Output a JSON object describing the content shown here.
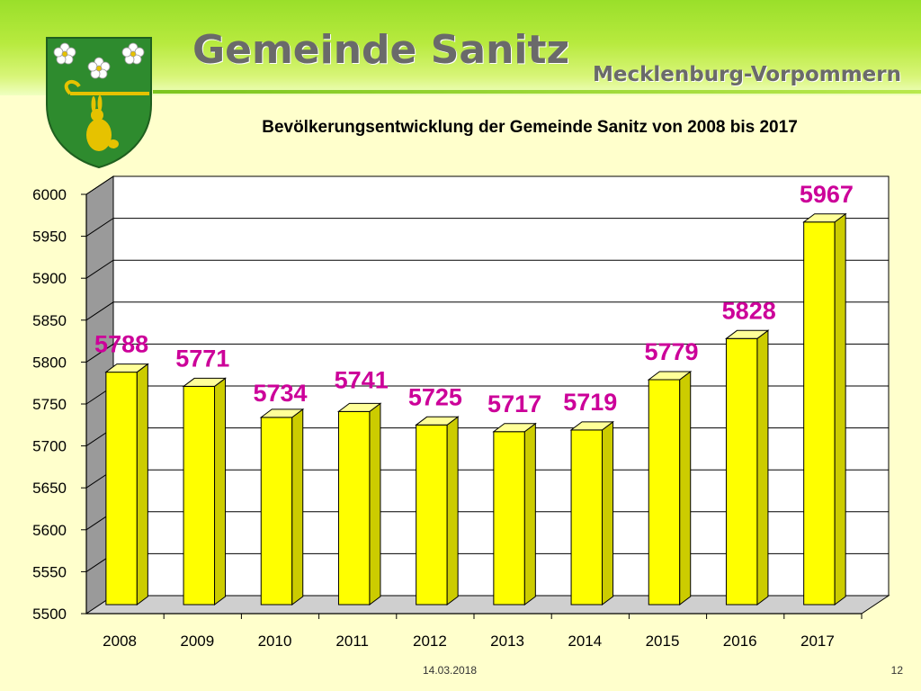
{
  "header": {
    "title": "Gemeinde Sanitz",
    "region": "Mecklenburg-Vorpommern"
  },
  "footer": {
    "date": "14.03.2018",
    "page": "12"
  },
  "colors": {
    "bar_fill": "#ffff00",
    "bar_side": "#cccc00",
    "bar_top": "#ffff99",
    "value_label": "#cc0099",
    "header_green": "#9adf2a",
    "background": "#ffffcc"
  },
  "chart_data": {
    "type": "bar",
    "title": "Bevölkerungsentwicklung der Gemeinde Sanitz von 2008 bis 2017",
    "xlabel": "",
    "ylabel": "",
    "categories": [
      "2008",
      "2009",
      "2010",
      "2011",
      "2012",
      "2013",
      "2014",
      "2015",
      "2016",
      "2017"
    ],
    "values": [
      5788,
      5771,
      5734,
      5741,
      5725,
      5717,
      5719,
      5779,
      5828,
      5967
    ],
    "ylim": [
      5500,
      6000
    ],
    "yticks": [
      "5500",
      "5550",
      "5600",
      "5650",
      "5700",
      "5750",
      "5800",
      "5850",
      "5900",
      "5950",
      "6000"
    ],
    "grid": true,
    "legend": "none",
    "style": "3d"
  }
}
